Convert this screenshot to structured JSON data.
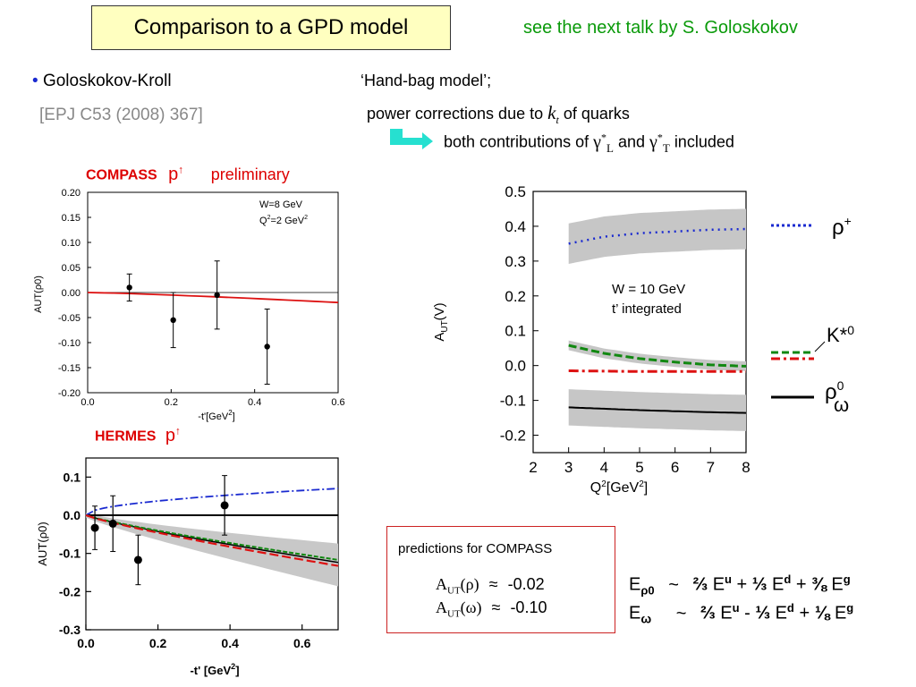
{
  "header": {
    "title": "Comparison to a GPD model",
    "note": "see the next talk by S. Goloskokov"
  },
  "left_text": {
    "bullet": "•",
    "author": "Goloskokov-Kroll",
    "ref": "[EPJ C53 (2008) 367]"
  },
  "right_text": {
    "line1": "‘Hand-bag model’;",
    "line2_pre": "power corrections due to",
    "line2_k": "k",
    "line2_sub": "t",
    "line2_post": "of quarks",
    "line3_pre": "both contributions of",
    "gamma": "γ",
    "star": "*",
    "subL": "L",
    "and": "and",
    "subT": "T",
    "line3_post": "included"
  },
  "compass": {
    "label": "COMPASS",
    "target": "p",
    "arrow": "↑",
    "status": "preliminary",
    "box_line1": "W=8 GeV",
    "box_line2a": "Q",
    "box_line2b": "2",
    "box_line2c": "=2 GeV",
    "box_line2d": "2",
    "ylabel": "AUT(ρ0)",
    "xlabel_a": "-t'[GeV",
    "xlabel_b": "2",
    "xlabel_c": "]"
  },
  "hermes": {
    "label": "HERMES",
    "target": "p",
    "arrow": "↑",
    "ylabel": "AUT(ρ0)",
    "xlabel_a": "-t' [GeV",
    "xlabel_b": "2",
    "xlabel_c": "]"
  },
  "right_chart": {
    "annot1": "W = 10 GeV",
    "annot2": "t’ integrated",
    "ylabel_a": "A",
    "ylabel_b": "UT",
    "ylabel_c": "(V)",
    "xlabel_a": "Q",
    "xlabel_b": "2",
    "xlabel_c": "[GeV",
    "xlabel_d": "2",
    "xlabel_e": "]",
    "legend_rho_plus": "ρ",
    "legend_rho_plus_sup": "+",
    "legend_kstar": "K*",
    "legend_kstar_sup": "0",
    "legend_rho0": "ρ",
    "legend_rho0_sup": "0",
    "legend_omega": "ω"
  },
  "predictions": {
    "title": "predictions  for COMPASS",
    "row1_a": "A",
    "row1_sub": "UT",
    "row1_b": "(ρ)",
    "approx": "≈",
    "row1_val": "-0.02",
    "row2_a": "A",
    "row2_sub": "UT",
    "row2_b": "(ω)",
    "row2_val": "-0.10"
  },
  "formulas": {
    "E": "E",
    "sub_rho": "ρ0",
    "sub_omega": "ω",
    "tilde": "~",
    "f1_c1": "⅔",
    "f1_c2": "⅓",
    "f1_c3": "⅜",
    "f2_c1": "⅔",
    "f2_c2": "⅓",
    "f2_c3": "⅛",
    "u": "u",
    "d": "d",
    "g": "g",
    "plus": "+",
    "minus": "-"
  },
  "chart_data": [
    {
      "type": "scatter",
      "name": "COMPASS",
      "x": [
        0.1,
        0.205,
        0.31,
        0.43
      ],
      "y": [
        0.01,
        -0.055,
        -0.005,
        -0.108
      ],
      "yerr": [
        0.027,
        0.055,
        0.068,
        0.075
      ],
      "model_curve": {
        "x": [
          0.0,
          0.6
        ],
        "y": [
          0.0,
          -0.02
        ]
      },
      "xlim": [
        0.0,
        0.6
      ],
      "ylim": [
        -0.2,
        0.2
      ],
      "xticks": [
        "0.0",
        "0.2",
        "0.4",
        "0.6"
      ],
      "yticks": [
        "0.20",
        "0.15",
        "0.10",
        "0.05",
        "0.00",
        "-0.05",
        "-0.10",
        "-0.15",
        "-0.20"
      ]
    },
    {
      "type": "scatter",
      "name": "HERMES",
      "x": [
        0.025,
        0.075,
        0.145,
        0.385
      ],
      "y": [
        -0.033,
        -0.022,
        -0.117,
        0.026
      ],
      "yerr": [
        0.057,
        0.073,
        0.065,
        0.078
      ],
      "xlim": [
        0.0,
        0.7
      ],
      "ylim": [
        -0.3,
        0.15
      ],
      "xticks": [
        "0.0",
        "0.2",
        "0.4",
        "0.6"
      ],
      "yticks": [
        "0.1",
        "0.0",
        "-0.1",
        "-0.2",
        "-0.3"
      ]
    },
    {
      "type": "line",
      "name": "GPD model predictions",
      "x": [
        3,
        4,
        5,
        6,
        7,
        8
      ],
      "series": [
        {
          "name": "ρ+",
          "values": [
            0.35,
            0.37,
            0.38,
            0.385,
            0.39,
            0.392
          ]
        },
        {
          "name": "K*0",
          "values": [
            0.058,
            0.035,
            0.02,
            0.01,
            0.002,
            -0.002
          ]
        },
        {
          "name": "ρ0",
          "values": [
            -0.015,
            -0.016,
            -0.017,
            -0.017,
            -0.017,
            -0.017
          ]
        },
        {
          "name": "ω",
          "values": [
            -0.12,
            -0.124,
            -0.128,
            -0.131,
            -0.134,
            -0.136
          ]
        }
      ],
      "xlim": [
        2,
        8
      ],
      "ylim": [
        -0.25,
        0.5
      ],
      "xticks": [
        "2",
        "3",
        "4",
        "5",
        "6",
        "7",
        "8"
      ],
      "yticks": [
        "0.5",
        "0.4",
        "0.3",
        "0.2",
        "0.1",
        "0.0",
        "-0.1",
        "-0.2"
      ]
    }
  ]
}
